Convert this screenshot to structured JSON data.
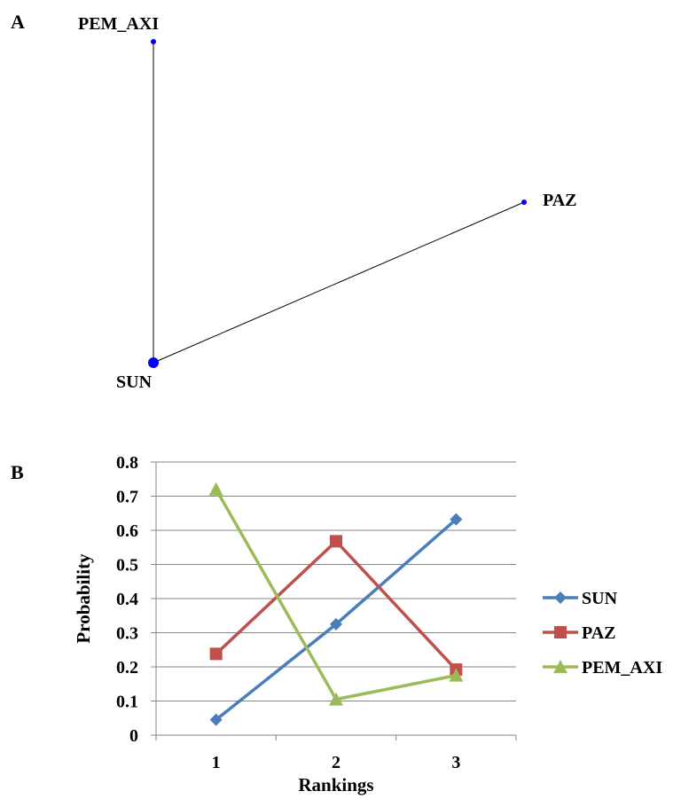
{
  "panel_a": {
    "label": "A",
    "nodes": [
      {
        "name": "PEM_AXI"
      },
      {
        "name": "PAZ"
      },
      {
        "name": "SUN"
      }
    ],
    "edges": [
      [
        "SUN",
        "PEM_AXI"
      ],
      [
        "SUN",
        "PAZ"
      ]
    ],
    "node_color": "#0000ff",
    "edge_color": "#000000"
  },
  "panel_b": {
    "label": "B"
  },
  "chart_data": {
    "type": "line",
    "categories": [
      "1",
      "2",
      "3"
    ],
    "series": [
      {
        "name": "SUN",
        "values": [
          0.045,
          0.325,
          0.632
        ],
        "color": "#4a7ebb",
        "marker": "diamond"
      },
      {
        "name": "PAZ",
        "values": [
          0.238,
          0.568,
          0.192
        ],
        "color": "#c0504d",
        "marker": "square"
      },
      {
        "name": "PEM_AXI",
        "values": [
          0.72,
          0.105,
          0.175
        ],
        "color": "#9bbb59",
        "marker": "triangle"
      }
    ],
    "title": "",
    "xlabel": "Rankings",
    "ylabel": "Probability",
    "ylim": [
      0,
      0.8
    ],
    "yticks": [
      "0",
      "0.1",
      "0.2",
      "0.3",
      "0.4",
      "0.5",
      "0.6",
      "0.7",
      "0.8"
    ],
    "grid": true,
    "legend_position": "right"
  }
}
